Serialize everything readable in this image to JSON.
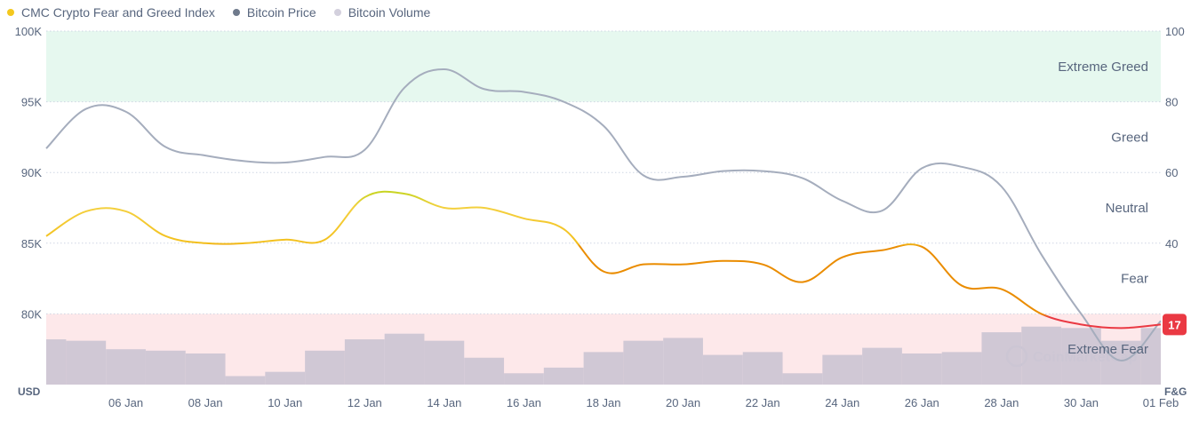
{
  "legend": [
    {
      "label": "CMC Crypto Fear and Greed Index",
      "color": "#f4c81e"
    },
    {
      "label": "Bitcoin Price",
      "color": "#6f7a8c"
    },
    {
      "label": "Bitcoin Volume",
      "color": "#d3d0dd"
    }
  ],
  "watermark": "CoinMarketCap",
  "current_badge": {
    "value": "17",
    "color": "#ea3943"
  },
  "chart_data": {
    "type": "line",
    "x_labels": [
      "06 Jan",
      "08 Jan",
      "10 Jan",
      "12 Jan",
      "14 Jan",
      "16 Jan",
      "18 Jan",
      "20 Jan",
      "22 Jan",
      "24 Jan",
      "26 Jan",
      "28 Jan",
      "30 Jan",
      "01 Feb"
    ],
    "x_label_index": [
      2,
      4,
      6,
      8,
      10,
      12,
      14,
      16,
      18,
      20,
      22,
      24,
      26,
      28
    ],
    "y_left": {
      "unit": "USD",
      "ticks": [
        "100K",
        "95K",
        "90K",
        "85K",
        "80K"
      ],
      "min": 75000,
      "max": 100000
    },
    "y_right": {
      "unit": "F&G",
      "ticks": [
        "100",
        "80",
        "60",
        "40"
      ],
      "min": 0,
      "max": 100
    },
    "zones": [
      {
        "label": "Extreme Greed",
        "from": 80,
        "to": 100,
        "color": "#e6f8ef"
      },
      {
        "label": "Greed",
        "from": 60,
        "to": 80
      },
      {
        "label": "Neutral",
        "from": 40,
        "to": 60
      },
      {
        "label": "Fear",
        "from": 20,
        "to": 40
      },
      {
        "label": "Extreme Fear",
        "from": 0,
        "to": 20,
        "color": "#fde8ea"
      }
    ],
    "series": [
      {
        "name": "CMC Crypto Fear and Greed Index",
        "axis": "right",
        "values": [
          42,
          49,
          49,
          42,
          40,
          40,
          41,
          41,
          53,
          54,
          50,
          50,
          47,
          44,
          32,
          34,
          34,
          35,
          34,
          29,
          36,
          38,
          39,
          28,
          27,
          20,
          17,
          16,
          17
        ]
      },
      {
        "name": "Bitcoin Price",
        "axis": "left",
        "values": [
          91700,
          94500,
          94300,
          91800,
          91200,
          90800,
          90700,
          91100,
          91600,
          96000,
          97300,
          95900,
          95700,
          95000,
          93300,
          89800,
          89700,
          90100,
          90100,
          89600,
          88000,
          87300,
          90300,
          90400,
          89000,
          84200,
          80000,
          76700,
          79500
        ]
      },
      {
        "name": "Bitcoin Volume",
        "axis": "left",
        "values": [
          78200,
          78100,
          77500,
          77400,
          77200,
          75600,
          75900,
          77400,
          78200,
          78600,
          78100,
          76900,
          75800,
          76200,
          77300,
          78100,
          78300,
          77100,
          77300,
          75800,
          77100,
          77600,
          77200,
          77300,
          78700,
          79100,
          79000,
          78100,
          79000
        ]
      }
    ]
  }
}
